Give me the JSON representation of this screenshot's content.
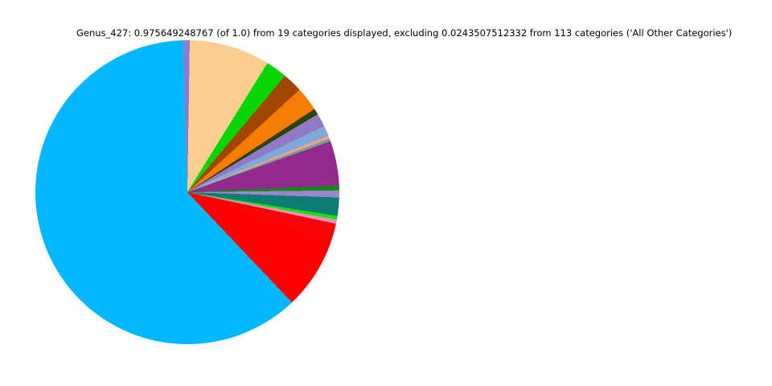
{
  "title": "Genus_427: 0.975649248767 (of 1.0) from 19 categories displayed, excluding 0.0243507512332 from 113 categories ('All Other Categories')",
  "chart_data": {
    "type": "pie",
    "title": "Genus_427: 0.975649248767 (of 1.0) from 19 categories displayed, excluding 0.0243507512332 from 113 categories ('All Other Categories')",
    "displayed_total": "0.975649248767",
    "total": "1.0",
    "categories_displayed": 19,
    "excluded_fraction": "0.0243507512332",
    "categories_excluded": 113,
    "excluded_label": "All Other Categories",
    "legend": "none",
    "start_angle_deg": -1.6,
    "direction": "clockwise-from-north",
    "slices": [
      {
        "name": "slice-purple-sliver-top",
        "color": "#8B7BD3",
        "sweep_deg": 2.5,
        "value_est": 0.0068
      },
      {
        "name": "slice-peach",
        "color": "#FBCD8E",
        "sweep_deg": 30.9,
        "value_est": 0.0837
      },
      {
        "name": "slice-bright-green",
        "color": "#06D506",
        "sweep_deg": 8.2,
        "value_est": 0.0222
      },
      {
        "name": "slice-brown",
        "color": "#A34505",
        "sweep_deg": 7.6,
        "value_est": 0.0206
      },
      {
        "name": "slice-orange",
        "color": "#F57D05",
        "sweep_deg": 9.2,
        "value_est": 0.0249
      },
      {
        "name": "slice-dark-olive-green",
        "color": "#2D4207",
        "sweep_deg": 2.3,
        "value_est": 0.0062
      },
      {
        "name": "slice-medium-purple",
        "color": "#9179C8",
        "sweep_deg": 5.1,
        "value_est": 0.0138
      },
      {
        "name": "slice-sky-blue",
        "color": "#7FA9DB",
        "sweep_deg": 4.0,
        "value_est": 0.0108
      },
      {
        "name": "slice-salmon",
        "color": "#FCA183",
        "sweep_deg": 1.1,
        "value_est": 0.003
      },
      {
        "name": "slice-cadet-teal-gray",
        "color": "#6FA298",
        "sweep_deg": 1.1,
        "value_est": 0.003
      },
      {
        "name": "slice-magenta-purple",
        "color": "#932A8E",
        "sweep_deg": 17.1,
        "value_est": 0.0463
      },
      {
        "name": "slice-forest-green",
        "color": "#0A8F0A",
        "sweep_deg": 1.8,
        "value_est": 0.0049
      },
      {
        "name": "slice-medium-purple-2",
        "color": "#9C85CE",
        "sweep_deg": 2.7,
        "value_est": 0.0073
      },
      {
        "name": "slice-teal",
        "color": "#0E7E74",
        "sweep_deg": 7.0,
        "value_est": 0.019
      },
      {
        "name": "slice-lime-green",
        "color": "#0CE50C",
        "sweep_deg": 1.4,
        "value_est": 0.0038
      },
      {
        "name": "slice-pink",
        "color": "#F08CB8",
        "sweep_deg": 1.6,
        "value_est": 0.0043
      },
      {
        "name": "slice-red-1",
        "color": "#F60606",
        "sweep_deg": 7.4,
        "value_est": 0.0201
      },
      {
        "name": "slice-red-2",
        "color": "#FF0000",
        "sweep_deg": 27.1,
        "value_est": 0.0734
      },
      {
        "name": "slice-cyan",
        "color": "#04B7FC",
        "sweep_deg": 221.9,
        "value_est": 0.6014
      }
    ]
  }
}
